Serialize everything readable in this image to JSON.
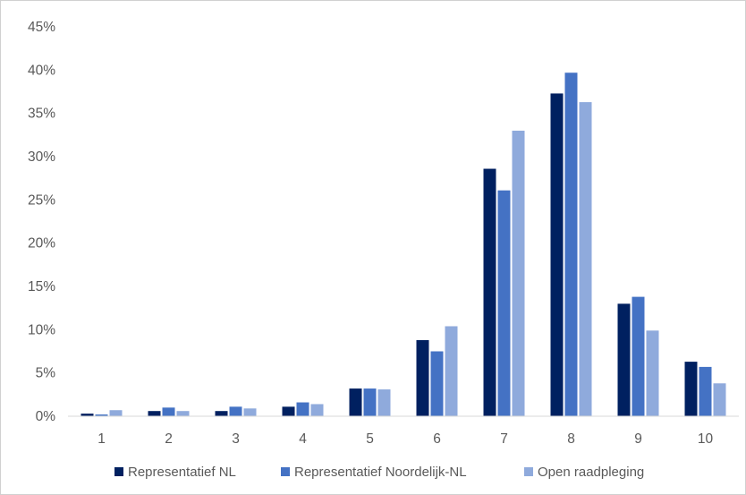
{
  "chart_data": {
    "type": "bar",
    "title": "",
    "xlabel": "",
    "ylabel": "",
    "categories": [
      "1",
      "2",
      "3",
      "4",
      "5",
      "6",
      "7",
      "8",
      "9",
      "10"
    ],
    "ylim": [
      0,
      45
    ],
    "yticks": [
      "0%",
      "5%",
      "10%",
      "15%",
      "20%",
      "25%",
      "30%",
      "35%",
      "40%",
      "45%"
    ],
    "grid": false,
    "legend_position": "bottom",
    "series": [
      {
        "name": "Representatief NL",
        "color": "#002060",
        "values": [
          0.3,
          0.6,
          0.6,
          1.1,
          3.2,
          8.8,
          28.6,
          37.3,
          13.0,
          6.3
        ]
      },
      {
        "name": "Representatief Noordelijk-NL",
        "color": "#4472C4",
        "values": [
          0.2,
          1.0,
          1.1,
          1.6,
          3.2,
          7.5,
          26.1,
          39.7,
          13.8,
          5.7
        ]
      },
      {
        "name": "Open raadpleging",
        "color": "#8FAADC",
        "values": [
          0.7,
          0.6,
          0.9,
          1.4,
          3.1,
          10.4,
          33.0,
          36.3,
          9.9,
          3.8
        ]
      }
    ]
  }
}
